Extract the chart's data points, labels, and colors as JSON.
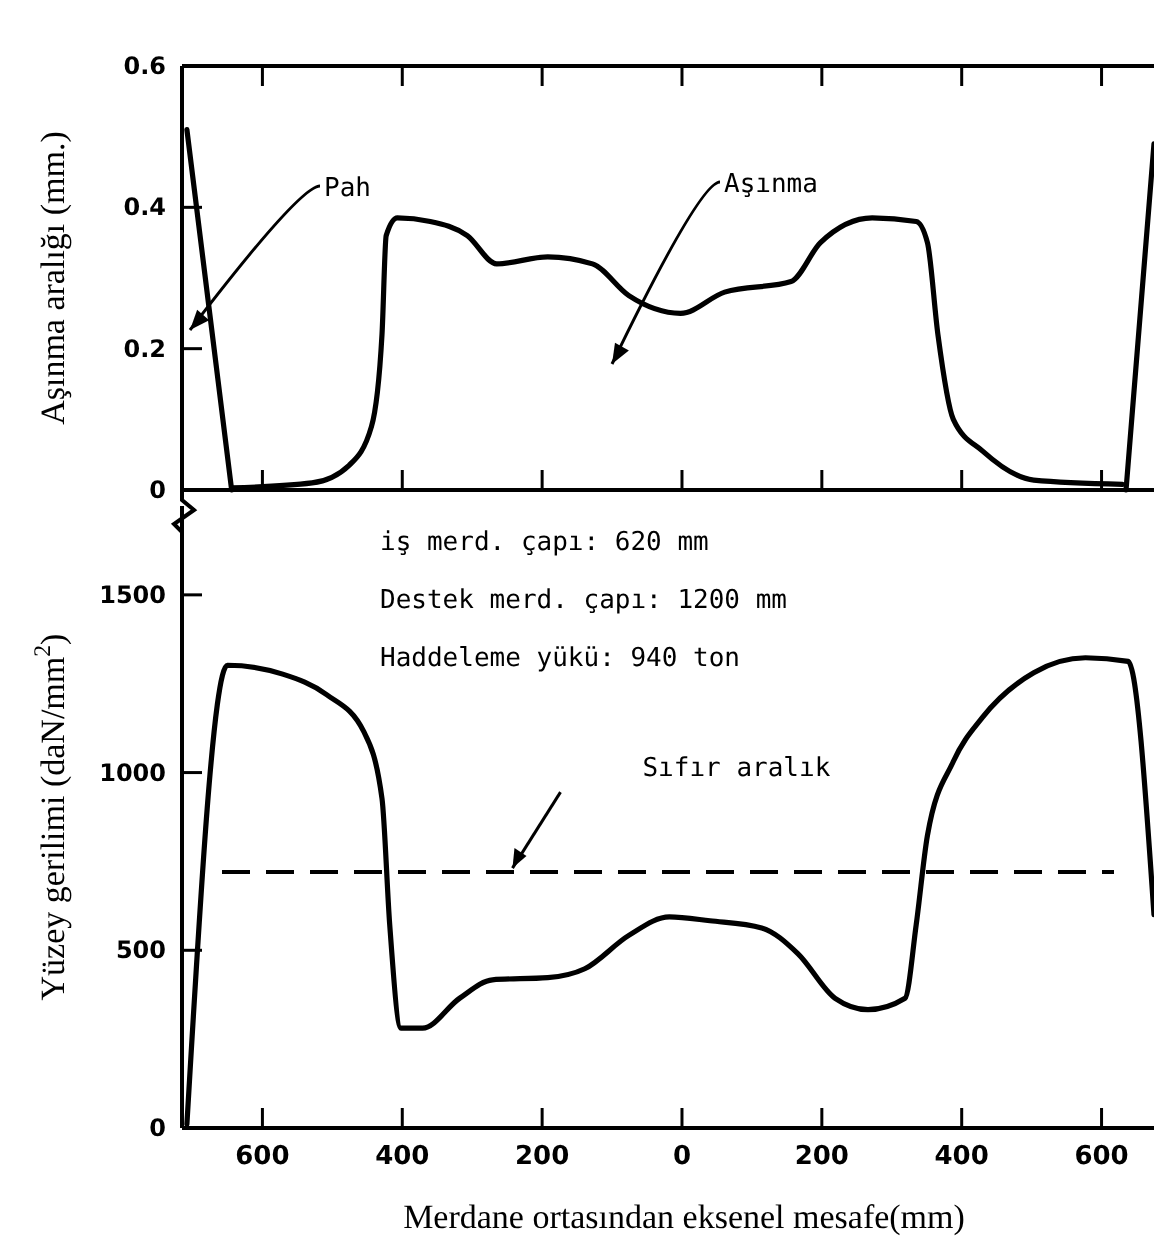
{
  "chart_data": [
    {
      "type": "line",
      "ylabel": "Aşınma aralığı (mm.)",
      "xlim": [
        -715,
        675
      ],
      "ylim": [
        0,
        0.6
      ],
      "xticks": [
        {
          "value": -600,
          "label": null
        },
        {
          "value": -400,
          "label": null
        },
        {
          "value": -200,
          "label": null
        },
        {
          "value": 0,
          "label": null
        },
        {
          "value": 200,
          "label": null
        },
        {
          "value": 400,
          "label": null
        },
        {
          "value": 600,
          "label": null
        }
      ],
      "yticks": [
        0,
        0.2,
        0.4,
        0.6
      ],
      "tick_labels": "y",
      "grid": false,
      "line_style": "solid",
      "series": [
        {
          "color": "#000000",
          "x": [
            -644,
            -529,
            -476,
            -444,
            -429,
            -423,
            -407,
            -360,
            -307,
            -265,
            -192,
            -128,
            -76,
            -2,
            61,
            156,
            198,
            272,
            335,
            351,
            366,
            388,
            430,
            503,
            630
          ],
          "values": [
            0.003,
            0.01,
            0.035,
            0.09,
            0.22,
            0.36,
            0.385,
            0.38,
            0.36,
            0.32,
            0.33,
            0.32,
            0.275,
            0.25,
            0.28,
            0.295,
            0.35,
            0.385,
            0.38,
            0.35,
            0.22,
            0.1,
            0.055,
            0.014,
            0.008
          ]
        },
        {
          "color": "#000000",
          "x": [
            -708,
            -644,
            0,
            635,
            675
          ],
          "values": [
            0.51,
            0,
            null,
            0,
            0.49
          ]
        }
      ],
      "annotations": [
        "Pah",
        "Aşınma"
      ]
    },
    {
      "type": "line",
      "xlabel": "Merdane ortasından eksenel mesafe(mm)",
      "ylabel": "Yüzey gerilimi (daN/mm$^{2}$)",
      "xlim": [
        -715,
        675
      ],
      "ylim": [
        0,
        1750
      ],
      "xticks": [
        {
          "value": -600,
          "label": "600"
        },
        {
          "value": -400,
          "label": "400"
        },
        {
          "value": -200,
          "label": "200"
        },
        0,
        200,
        400,
        600
      ],
      "yticks": [
        0,
        500,
        1000,
        1500
      ],
      "grid": false,
      "line_style": "solid",
      "series": [
        {
          "color": "#000000",
          "x": [
            -708,
            -650,
            -571,
            -508,
            -455,
            -429,
            -418,
            -402,
            -371,
            -318,
            -271,
            -192,
            -139,
            -76,
            -18,
            40,
            114,
            166,
            219,
            266,
            319,
            335,
            351,
            388,
            430,
            503,
            577,
            638,
            675
          ],
          "values": [
            10,
            1302,
            1277,
            1219,
            1115,
            927,
            573,
            281,
            281,
            365,
            417,
            423,
            448,
            542,
            594,
            583,
            563,
            490,
            365,
            333,
            365,
            573,
            823,
            1031,
            1156,
            1281,
            1323,
            1313,
            600
          ]
        }
      ],
      "ref_lines": [
        {
          "axis": "y",
          "value": 720,
          "label": "Sıfır aralık",
          "line_style": "dashed",
          "color": "#000000"
        }
      ],
      "annotations": [
        "iş merd. çapı: 620 mm",
        "Destek merd. çapı: 1200 mm",
        "Haddeleme yükü: 940 ton"
      ]
    }
  ]
}
